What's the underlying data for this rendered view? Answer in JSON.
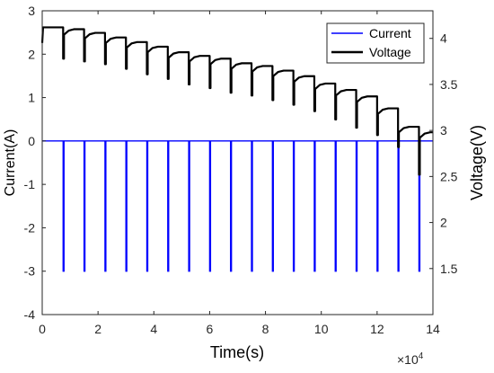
{
  "chart_data": {
    "type": "line",
    "xlabel": "Time(s)",
    "x_exponent_label": "×10",
    "x_exponent_power": "4",
    "ylabel_left": "Current(A)",
    "ylabel_right": "Voltage(V)",
    "xlim": [
      0,
      14
    ],
    "ylim_left": [
      -4,
      3
    ],
    "ylim_right": [
      1,
      4.3
    ],
    "x_ticks": [
      "0",
      "2",
      "4",
      "6",
      "8",
      "10",
      "12",
      "14"
    ],
    "y_left_ticks": [
      "-4",
      "-3",
      "-2",
      "-1",
      "0",
      "1",
      "2",
      "3"
    ],
    "y_right_ticks": [
      "1.5",
      "2",
      "2.5",
      "3",
      "3.5",
      "4"
    ],
    "grid": false,
    "legend_position": "top-right",
    "series": [
      {
        "name": "Current",
        "axis": "left",
        "color": "#0000ff",
        "baseline": 0,
        "pulse_value": -3,
        "pulse_times": [
          0.75,
          1.5,
          2.25,
          3.0,
          3.75,
          4.5,
          5.25,
          6.0,
          6.75,
          7.5,
          8.25,
          9.0,
          9.75,
          10.5,
          11.25,
          12.0,
          12.75,
          13.5
        ],
        "pulse_width": 0.03
      },
      {
        "name": "Voltage",
        "axis": "right",
        "color": "#000000",
        "rest_levels": [
          4.12,
          4.1,
          4.06,
          4.01,
          3.96,
          3.91,
          3.85,
          3.81,
          3.78,
          3.73,
          3.7,
          3.65,
          3.59,
          3.51,
          3.44,
          3.37,
          3.24,
          3.04,
          2.98
        ],
        "pulse_times": [
          0.75,
          1.5,
          2.25,
          3.0,
          3.75,
          4.5,
          5.25,
          6.0,
          6.75,
          7.5,
          8.25,
          9.0,
          9.75,
          10.5,
          11.25,
          12.0,
          12.75,
          13.5
        ],
        "pulse_low": [
          3.78,
          3.75,
          3.72,
          3.67,
          3.61,
          3.56,
          3.5,
          3.46,
          3.41,
          3.38,
          3.33,
          3.28,
          3.21,
          3.12,
          3.03,
          2.95,
          2.82,
          2.52
        ],
        "start_value": 3.95
      }
    ]
  }
}
